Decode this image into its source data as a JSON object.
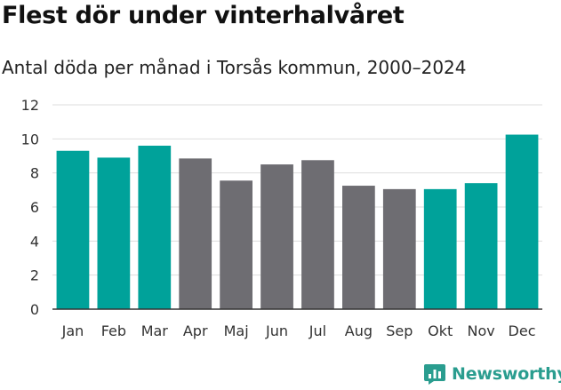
{
  "chart_data": {
    "type": "bar",
    "title": "Flest dör under vinterhalvåret",
    "subtitle": "Antal döda per månad i Torsås kommun, 2000–2024",
    "categories": [
      "Jan",
      "Feb",
      "Mar",
      "Apr",
      "Maj",
      "Jun",
      "Jul",
      "Aug",
      "Sep",
      "Okt",
      "Nov",
      "Dec"
    ],
    "values": [
      9.3,
      8.9,
      9.6,
      8.85,
      7.55,
      8.5,
      8.75,
      7.25,
      7.05,
      7.05,
      7.4,
      10.25
    ],
    "highlight": [
      true,
      true,
      true,
      false,
      false,
      false,
      false,
      false,
      false,
      true,
      true,
      true
    ],
    "ylim": [
      0,
      12
    ],
    "yticks": [
      0,
      2,
      4,
      6,
      8,
      10,
      12
    ],
    "grid": true,
    "colors": {
      "highlight": "#00a29a",
      "other": "#6e6d72",
      "grid": "#dddddd",
      "axis": "#333333"
    }
  },
  "brand": {
    "name": "Newsworthy",
    "icon": "newsworthy-logo-icon",
    "color": "#2a9d8f"
  }
}
